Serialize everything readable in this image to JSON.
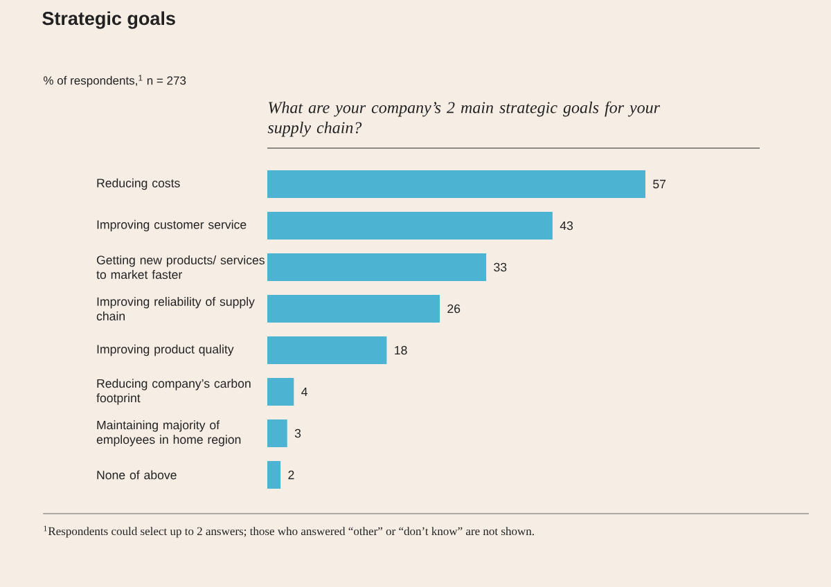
{
  "chart_data": {
    "type": "bar",
    "orientation": "horizontal",
    "title": "Strategic goals",
    "subtitle": "% of respondents,$^{1}$ n = 273",
    "annotations": [
      "What are your company’s 2 main strategic goals for your supply chain?",
      "$^{1}$Respondents could select up to 2 answers; those who answered “other” or “don’t know” are not shown."
    ],
    "categories": [
      "Reducing costs",
      "Improving customer service",
      "Getting new products/ services to market faster",
      "Improving reliability of supply chain",
      "Improving product quality",
      "Reducing company’s carbon footprint",
      "Maintaining majority of employees in home region",
      "None of above"
    ],
    "values": [
      57,
      43,
      33,
      26,
      18,
      4,
      3,
      2
    ],
    "color": "#4db3d3",
    "data_labels": true
  }
}
